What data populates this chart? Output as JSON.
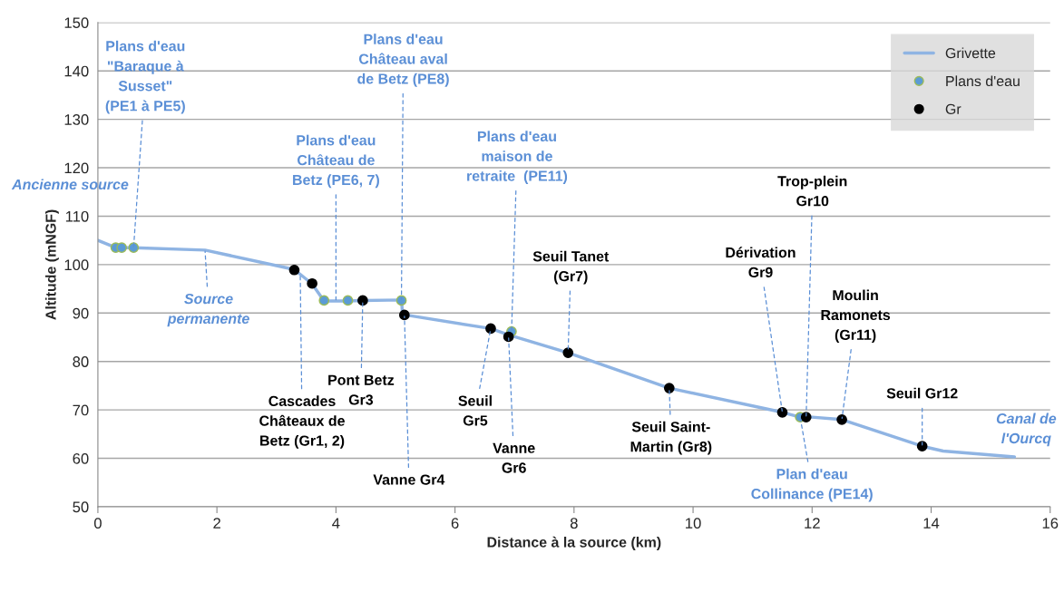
{
  "chart_data": {
    "type": "line",
    "xlabel": "Distance à la source (km)",
    "ylabel": "Altitude (mNGF)",
    "xlim": [
      0,
      16
    ],
    "xticks": [
      0,
      2,
      4,
      6,
      8,
      10,
      12,
      14,
      16
    ],
    "ylim": [
      50,
      150
    ],
    "yticks": [
      50,
      60,
      70,
      80,
      90,
      100,
      110,
      120,
      130,
      140,
      150
    ],
    "grid": "y",
    "legend": "top right",
    "series": [
      {
        "name": "Grivette",
        "color": "#8fb4e3",
        "marker": "none",
        "x": [
          0,
          0.3,
          0.6,
          1.8,
          3.3,
          3.6,
          3.8,
          4.2,
          4.45,
          5.1,
          5.12,
          6.6,
          6.9,
          7.9,
          9.6,
          11.5,
          11.8,
          11.9,
          12.5,
          13.85,
          14.2,
          15.4
        ],
        "values": [
          105,
          103.5,
          103.5,
          103,
          99,
          96,
          92.5,
          92.5,
          92.6,
          92.7,
          89.7,
          86.8,
          85.5,
          81.8,
          74.5,
          69.5,
          68.5,
          68.6,
          68,
          62.5,
          61.5,
          60.3
        ]
      },
      {
        "name": "Plans d'eau",
        "type": "scatter",
        "color": "#5b9bd5",
        "marker": "circle",
        "x": [
          0.3,
          0.4,
          0.6,
          3.8,
          4.2,
          5.1,
          6.95,
          11.8
        ],
        "values": [
          103.5,
          103.5,
          103.5,
          92.6,
          92.6,
          92.6,
          86.2,
          68.5
        ]
      },
      {
        "name": "Gr",
        "type": "scatter",
        "color": "#000000",
        "marker": "circle",
        "x": [
          3.3,
          3.6,
          4.45,
          5.15,
          6.6,
          6.9,
          7.9,
          9.6,
          11.5,
          11.9,
          12.5,
          13.85
        ],
        "values": [
          98.9,
          96.1,
          92.6,
          89.6,
          86.8,
          85.1,
          81.8,
          74.5,
          69.5,
          68.5,
          68,
          62.5
        ]
      }
    ],
    "annotations": [
      {
        "text": "Plans d'eau\n\"Baraque à\nSusset\"\n(PE1 à PE5)",
        "x": 0.6,
        "y": 103.5
      },
      "Ancienne source",
      {
        "text": "Source\npermanente",
        "x": 1.8,
        "y": 103
      },
      {
        "text": "Plans d'eau\nChâteau de\nBetz (PE6, 7)",
        "x": 4.0,
        "y": 92.5
      },
      {
        "text": "Plans d'eau\nChâteau aval\nde Betz (PE8)",
        "x": 5.1,
        "y": 92.6
      },
      {
        "text": "Plans d'eau\nmaison de\nretraite  (PE11)",
        "x": 6.95,
        "y": 86.2
      },
      {
        "text": "Cascades\nChâteaux de\nBetz (Gr1, 2)",
        "x": 3.4,
        "y": 98
      },
      {
        "text": "Pont Betz\nGr3",
        "x": 4.45,
        "y": 92.6
      },
      {
        "text": "Vanne Gr4",
        "x": 5.15,
        "y": 89.6
      },
      {
        "text": "Seuil\nGr5",
        "x": 6.6,
        "y": 86.8
      },
      {
        "text": "Vanne\nGr6",
        "x": 6.9,
        "y": 85.1
      },
      {
        "text": "Seuil Tanet\n(Gr7)",
        "x": 7.9,
        "y": 81.8
      },
      {
        "text": "Seuil Saint-\nMartin (Gr8)",
        "x": 9.6,
        "y": 74.5
      },
      {
        "text": "Dérivation\nGr9",
        "x": 11.5,
        "y": 69.5
      },
      {
        "text": "Trop-plein\nGr10",
        "x": 11.9,
        "y": 68.5
      },
      {
        "text": "Moulin\nRamonets\n(Gr11)",
        "x": 12.5,
        "y": 68
      },
      {
        "text": "Seuil Gr12",
        "x": 13.85,
        "y": 62.5
      },
      {
        "text": "Plan d'eau\nCollinance (PE14)",
        "x": 11.8,
        "y": 68.5
      },
      {
        "text": "Canal de\nl'Ourcq",
        "x": 15.4,
        "y": 60.3
      }
    ]
  }
}
